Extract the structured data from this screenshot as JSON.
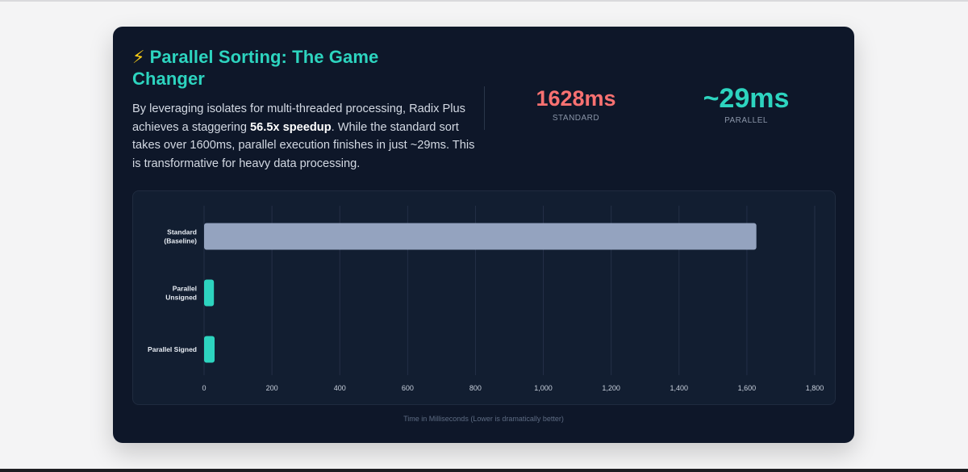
{
  "header": {
    "title_icon": "lightning-bolt-icon",
    "title_icon_glyph": "⚡",
    "title": "Parallel Sorting: The Game Changer",
    "description": {
      "before": "By leveraging isolates for multi-threaded processing, Radix Plus achieves a staggering ",
      "highlight": "56.5x speedup",
      "after": ". While the standard sort takes over 1600ms, parallel execution finishes in just ~29ms. This is transformative for heavy data processing."
    }
  },
  "stats": {
    "standard": {
      "value": "1628ms",
      "label": "STANDARD",
      "color": "#f87171"
    },
    "parallel": {
      "value": "~29ms",
      "label": "PARALLEL",
      "color": "#2dd4bf"
    }
  },
  "chart_data": {
    "type": "bar",
    "orientation": "horizontal",
    "categories": [
      [
        "Standard",
        "(Baseline)"
      ],
      [
        "Parallel",
        "Unsigned"
      ],
      [
        "Parallel Signed"
      ]
    ],
    "values": [
      1628,
      29,
      31
    ],
    "bar_colors": [
      "#94a3bf",
      "#2dd4bf",
      "#2dd4bf"
    ],
    "xlim": [
      0,
      1800
    ],
    "xticks": [
      0,
      200,
      400,
      600,
      800,
      1000,
      1200,
      1400,
      1600,
      1800
    ],
    "xtick_labels": [
      "0",
      "200",
      "400",
      "600",
      "800",
      "1,000",
      "1,200",
      "1,400",
      "1,600",
      "1,800"
    ],
    "xlabel": "Time in Milliseconds (Lower is dramatically better)",
    "grid": "vertical"
  },
  "colors": {
    "accent": "#2dd4bf",
    "standard": "#f87171",
    "card_bg": "#0e1729",
    "chart_bg": "#121e31"
  }
}
